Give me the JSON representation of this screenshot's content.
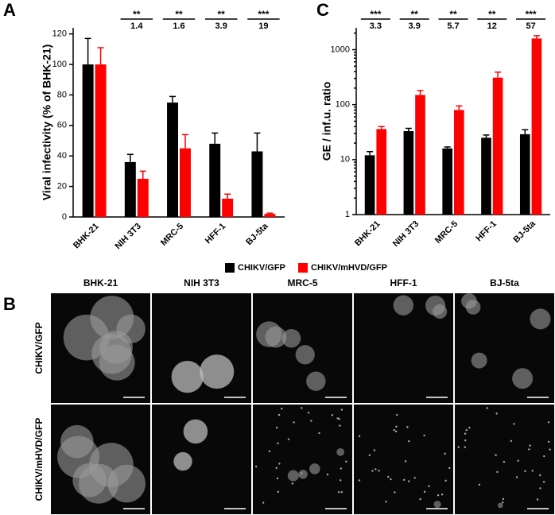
{
  "panel_labels": [
    "A",
    "B",
    "C"
  ],
  "chart_data": [
    {
      "type": "bar",
      "ylabel": "Viral infectivity (% of BHK-21)",
      "categories": [
        "BHK-21",
        "NIH 3T3",
        "MRC-5",
        "HFF-1",
        "BJ-5ta"
      ],
      "series": [
        {
          "name": "CHIKV/GFP",
          "color": "#000000",
          "values": [
            100,
            36,
            75,
            48,
            43
          ],
          "errors": [
            17,
            5,
            4,
            7,
            12
          ]
        },
        {
          "name": "CHIKV/mHVD/GFP",
          "color": "#ff0000",
          "values": [
            100,
            25,
            45,
            12,
            2
          ],
          "errors": [
            11,
            5,
            9,
            3,
            0.5
          ]
        }
      ],
      "significance": [
        null,
        "**",
        "**",
        "**",
        "***"
      ],
      "fold_change": [
        null,
        1.4,
        1.6,
        3.9,
        19
      ],
      "ylim": [
        0,
        124
      ],
      "yticks": [
        0,
        20,
        40,
        60,
        80,
        100,
        120
      ]
    },
    {
      "type": "bar",
      "ylabel": "GE / inf.u. ratio",
      "yscale": "log",
      "categories": [
        "BHK-21",
        "NIH 3T3",
        "MRC-5",
        "HFF-1",
        "BJ-5ta"
      ],
      "series": [
        {
          "color": "#000000",
          "values": [
            12,
            33,
            16,
            25,
            29
          ],
          "errors": [
            2,
            4,
            1,
            3,
            6
          ]
        },
        {
          "color": "#ff0000",
          "values": [
            36,
            150,
            80,
            310,
            1600
          ],
          "errors": [
            4,
            30,
            15,
            80,
            200
          ]
        }
      ],
      "significance": [
        "***",
        "**",
        "**",
        "**",
        "***"
      ],
      "fold_change": [
        3.3,
        3.9,
        5.7,
        12,
        57
      ],
      "ylim": [
        1,
        2500
      ],
      "yticks": [
        1,
        10,
        100,
        1000
      ]
    }
  ],
  "images": {
    "columns": [
      "BHK-21",
      "NIH 3T3",
      "MRC-5",
      "HFF-1",
      "BJ-5ta"
    ],
    "rows": [
      "CHIKV/GFP",
      "CHIKV/mHVD/GFP"
    ]
  }
}
